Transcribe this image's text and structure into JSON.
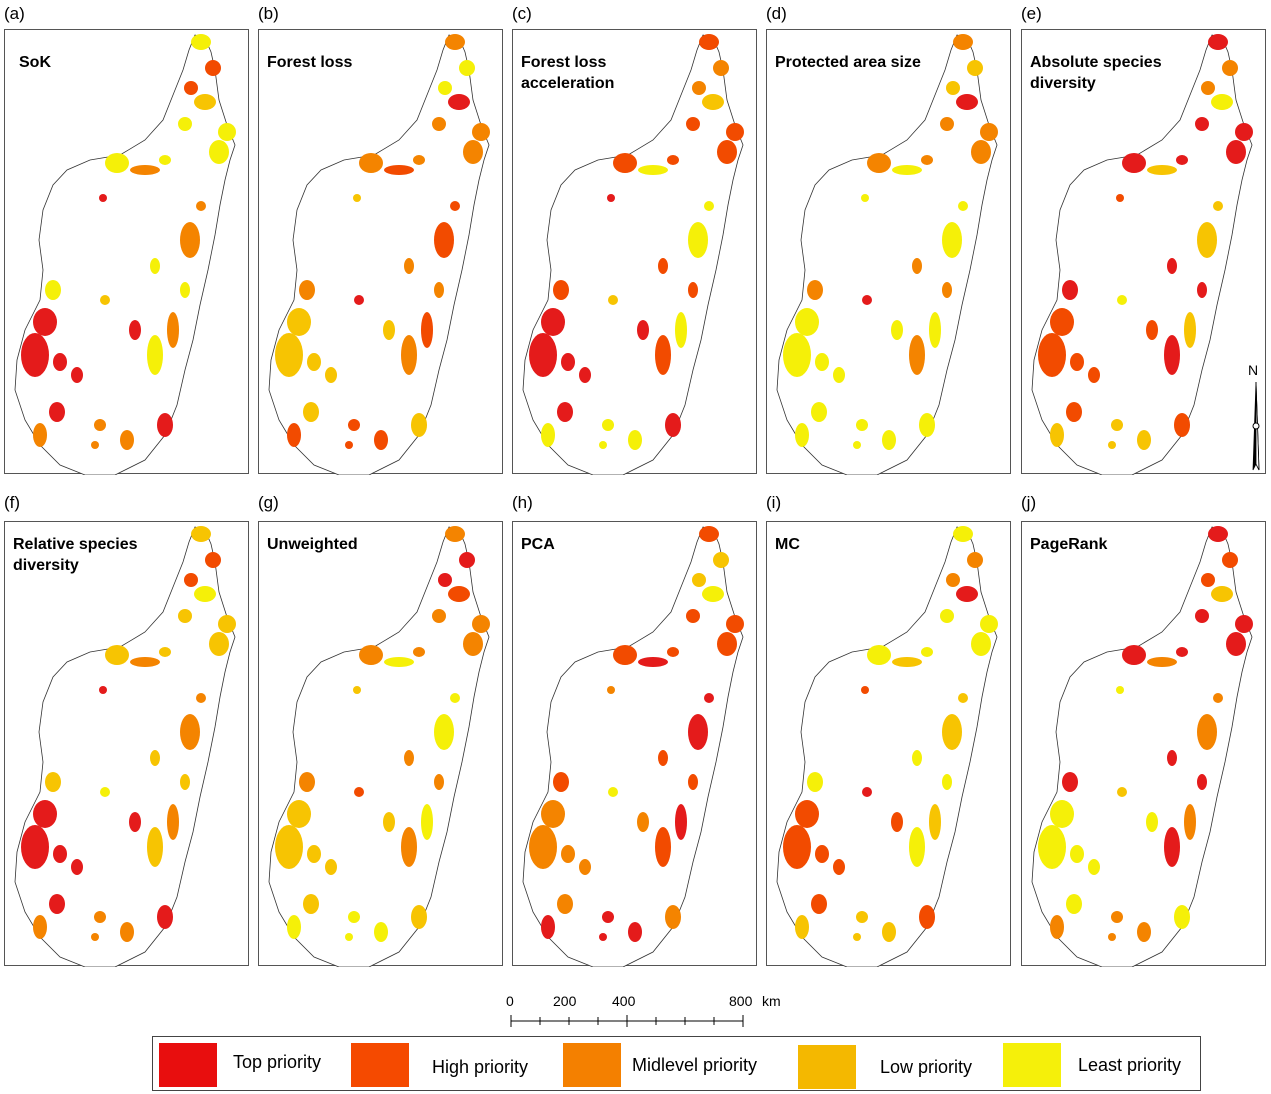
{
  "panels": [
    {
      "letter": "(a)",
      "title": "SoK",
      "colors": [
        "#f5f008",
        "#f7c402",
        "#f48400",
        "#f24b00",
        "#e41b1b"
      ]
    },
    {
      "letter": "(b)",
      "title": "Forest loss",
      "colors": [
        "#f7c402",
        "#f48400",
        "#e41b1b",
        "#f24b00",
        "#f5f008"
      ]
    },
    {
      "letter": "(c)",
      "title": "Forest loss acceleration",
      "colors": [
        "#f48400",
        "#e41b1b",
        "#f24b00",
        "#f7c402",
        "#f5f008"
      ]
    },
    {
      "letter": "(d)",
      "title": "Protected area size",
      "colors": [
        "#f5f008",
        "#f7c402",
        "#f5f008",
        "#f48400",
        "#e41b1b"
      ]
    },
    {
      "letter": "(e)",
      "title": "Absolute species diversity",
      "colors": [
        "#f5f008",
        "#f7c402",
        "#f48400",
        "#f24b00",
        "#e41b1b"
      ]
    },
    {
      "letter": "(f)",
      "title": "Relative species diversity",
      "colors": [
        "#f7c402",
        "#f5f008",
        "#f48400",
        "#f24b00",
        "#e41b1b"
      ]
    },
    {
      "letter": "(g)",
      "title": "Unweighted",
      "colors": [
        "#f7c402",
        "#f48400",
        "#f24b00",
        "#f5f008",
        "#e41b1b"
      ]
    },
    {
      "letter": "(h)",
      "title": "PCA",
      "colors": [
        "#f7c402",
        "#f48400",
        "#f24b00",
        "#f5f008",
        "#e41b1b"
      ]
    },
    {
      "letter": "(i)",
      "title": "MC",
      "colors": [
        "#f7c402",
        "#f48400",
        "#f24b00",
        "#f5f008",
        "#e41b1b"
      ]
    },
    {
      "letter": "(j)",
      "title": "PageRank",
      "colors": [
        "#f7c402",
        "#f48400",
        "#f24b00",
        "#f5f008",
        "#e41b1b"
      ]
    }
  ],
  "north_label": "N",
  "scale": {
    "ticks": [
      "0",
      "200",
      "400",
      "800"
    ],
    "unit": "km"
  },
  "legend": [
    {
      "label": "Top priority",
      "color": "#e80e0e"
    },
    {
      "label": "High priority",
      "color": "#f54a00"
    },
    {
      "label": "Midlevel priority",
      "color": "#f48000"
    },
    {
      "label": "Low priority",
      "color": "#f4b800"
    },
    {
      "label": "Least priority",
      "color": "#f5f00a"
    }
  ]
}
